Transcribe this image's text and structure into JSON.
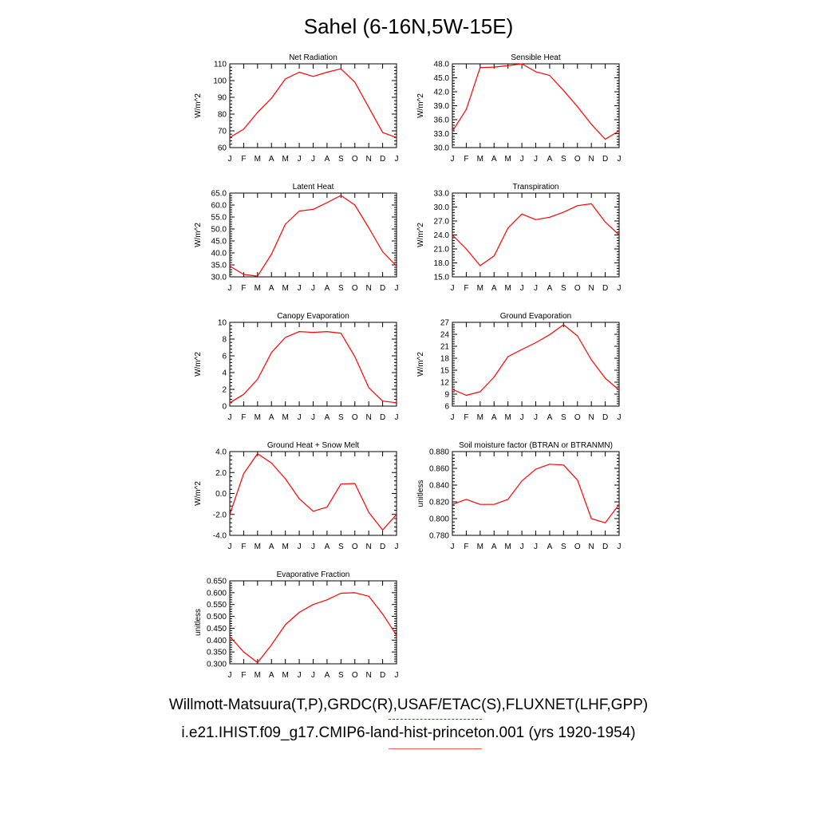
{
  "figure": {
    "title": "Sahel (6-16N,5W-15E)",
    "legend": {
      "observations": "Willmott-Matsuura(T,P),GRDC(R),USAF/ETAC(S),FLUXNET(LHF,GPP)",
      "model": "i.e21.IHIST.f09_g17.CMIP6-land-hist-princeton.001 (yrs 1920-1954)"
    },
    "colors": {
      "model_line": "#ff0000",
      "obs_line": "#3b3bff",
      "axis": "#000000"
    }
  },
  "chart_data": [
    {
      "type": "line",
      "title": "Net Radiation",
      "ylabel": "W/m^2",
      "x": [
        "J",
        "F",
        "M",
        "A",
        "M",
        "J",
        "J",
        "A",
        "S",
        "O",
        "N",
        "D",
        "J"
      ],
      "ylim": [
        60,
        110
      ],
      "yticks": [
        "60",
        "70",
        "80",
        "90",
        "100",
        "110"
      ],
      "series": [
        {
          "values": [
            66,
            71,
            81,
            89.5,
            101,
            105,
            102.5,
            105,
            107,
            99,
            84,
            69,
            66
          ]
        }
      ]
    },
    {
      "type": "line",
      "title": "Sensible Heat",
      "ylabel": "W/m^2",
      "x": [
        "J",
        "F",
        "M",
        "A",
        "M",
        "J",
        "J",
        "A",
        "S",
        "O",
        "N",
        "D",
        "J"
      ],
      "ylim": [
        30,
        48
      ],
      "yticks": [
        "30.0",
        "33.0",
        "36.0",
        "39.0",
        "42.0",
        "45.0",
        "48.0"
      ],
      "series": [
        {
          "values": [
            33.5,
            38.2,
            47.2,
            47.3,
            47.6,
            48.0,
            46.3,
            45.5,
            42.3,
            38.8,
            35.0,
            31.8,
            33.6
          ]
        }
      ]
    },
    {
      "type": "line",
      "title": "Latent Heat",
      "ylabel": "W/m^2",
      "x": [
        "J",
        "F",
        "M",
        "A",
        "M",
        "J",
        "J",
        "A",
        "S",
        "O",
        "N",
        "D",
        "J"
      ],
      "ylim": [
        30,
        65
      ],
      "yticks": [
        "30.0",
        "35.0",
        "40.0",
        "45.0",
        "50.0",
        "55.0",
        "60.0",
        "65.0"
      ],
      "series": [
        {
          "values": [
            34.5,
            31.0,
            30.3,
            39.5,
            52.0,
            57.5,
            58.2,
            61.0,
            64.0,
            60.0,
            50.5,
            40.5,
            34.5
          ]
        }
      ]
    },
    {
      "type": "line",
      "title": "Transpiration",
      "ylabel": "W/m^2",
      "x": [
        "J",
        "F",
        "M",
        "A",
        "M",
        "J",
        "J",
        "A",
        "S",
        "O",
        "N",
        "D",
        "J"
      ],
      "ylim": [
        15,
        33
      ],
      "yticks": [
        "15.0",
        "18.0",
        "21.0",
        "24.0",
        "27.0",
        "30.0",
        "33.0"
      ],
      "series": [
        {
          "values": [
            24.0,
            21.0,
            17.4,
            19.5,
            25.5,
            28.5,
            27.3,
            27.8,
            28.9,
            30.3,
            30.7,
            26.8,
            24.0
          ]
        }
      ]
    },
    {
      "type": "line",
      "title": "Canopy Evaporation",
      "ylabel": "W/m^2",
      "x": [
        "J",
        "F",
        "M",
        "A",
        "M",
        "J",
        "J",
        "A",
        "S",
        "O",
        "N",
        "D",
        "J"
      ],
      "ylim": [
        0,
        10
      ],
      "yticks": [
        "0",
        "2",
        "4",
        "6",
        "8",
        "10"
      ],
      "series": [
        {
          "values": [
            0.4,
            1.4,
            3.2,
            6.4,
            8.2,
            8.9,
            8.8,
            8.9,
            8.7,
            5.9,
            2.2,
            0.6,
            0.4
          ]
        }
      ]
    },
    {
      "type": "line",
      "title": "Ground Evaporation",
      "ylabel": "W/m^2",
      "x": [
        "J",
        "F",
        "M",
        "A",
        "M",
        "J",
        "J",
        "A",
        "S",
        "O",
        "N",
        "D",
        "J"
      ],
      "ylim": [
        6,
        27
      ],
      "yticks": [
        "6",
        "9",
        "12",
        "15",
        "18",
        "21",
        "24",
        "27"
      ],
      "series": [
        {
          "values": [
            10.2,
            8.7,
            9.6,
            13.3,
            18.4,
            20.2,
            21.9,
            23.9,
            26.4,
            23.6,
            17.6,
            13.0,
            10.0
          ]
        }
      ]
    },
    {
      "type": "line",
      "title": "Ground Heat + Snow Melt",
      "ylabel": "W/m^2",
      "x": [
        "J",
        "F",
        "M",
        "A",
        "M",
        "J",
        "J",
        "A",
        "S",
        "O",
        "N",
        "D",
        "J"
      ],
      "ylim": [
        -4,
        4
      ],
      "yticks": [
        "-4.0",
        "-2.0",
        "0.0",
        "2.0",
        "4.0"
      ],
      "series": [
        {
          "values": [
            -2.0,
            1.9,
            3.8,
            2.9,
            1.4,
            -0.5,
            -1.7,
            -1.3,
            0.9,
            0.95,
            -1.8,
            -3.5,
            -2.0
          ]
        }
      ]
    },
    {
      "type": "line",
      "title": "Soil moisture factor (BTRAN or BTRANMN)",
      "ylabel": "unitless",
      "x": [
        "J",
        "F",
        "M",
        "A",
        "M",
        "J",
        "J",
        "A",
        "S",
        "O",
        "N",
        "D",
        "J"
      ],
      "ylim": [
        0.78,
        0.88
      ],
      "yticks": [
        "0.780",
        "0.800",
        "0.820",
        "0.840",
        "0.860",
        "0.880"
      ],
      "series": [
        {
          "values": [
            0.817,
            0.823,
            0.817,
            0.817,
            0.823,
            0.845,
            0.859,
            0.865,
            0.864,
            0.846,
            0.8,
            0.795,
            0.817
          ]
        }
      ]
    },
    {
      "type": "line",
      "title": "Evaporative Fraction",
      "ylabel": "unitless",
      "x": [
        "J",
        "F",
        "M",
        "A",
        "M",
        "J",
        "J",
        "A",
        "S",
        "O",
        "N",
        "D",
        "J"
      ],
      "ylim": [
        0.3,
        0.65
      ],
      "yticks": [
        "0.300",
        "0.350",
        "0.400",
        "0.450",
        "0.500",
        "0.550",
        "0.600",
        "0.650"
      ],
      "series": [
        {
          "values": [
            0.415,
            0.35,
            0.305,
            0.38,
            0.465,
            0.517,
            0.55,
            0.57,
            0.598,
            0.6,
            0.585,
            0.51,
            0.42
          ]
        }
      ]
    }
  ]
}
